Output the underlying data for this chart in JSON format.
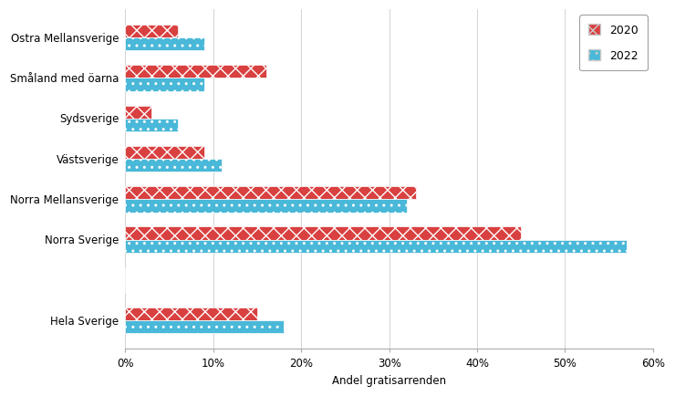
{
  "categories": [
    "Hela Sverige",
    "",
    "Norra Sverige",
    "Norra Mellansverige",
    "Västsverige",
    "Sydsverige",
    "Småland med öarna",
    "Ostra Mellansverige"
  ],
  "values_2020": [
    15,
    0,
    45,
    33,
    9,
    3,
    16,
    6
  ],
  "values_2022": [
    18,
    0,
    57,
    32,
    11,
    6,
    9,
    9
  ],
  "color_2020": "#d94040",
  "color_2022": "#4ab8d8",
  "xlabel": "Andel gratisarrenden",
  "xlim": [
    0,
    60
  ],
  "xticks": [
    0,
    10,
    20,
    30,
    40,
    50,
    60
  ],
  "xticklabels": [
    "0%",
    "10%",
    "20%",
    "30%",
    "40%",
    "50%",
    "60%"
  ],
  "legend_labels": [
    "2020",
    "2022"
  ],
  "bar_height": 0.32,
  "background_color": "#ffffff",
  "hatch_2020": "xx",
  "hatch_2022": ".."
}
